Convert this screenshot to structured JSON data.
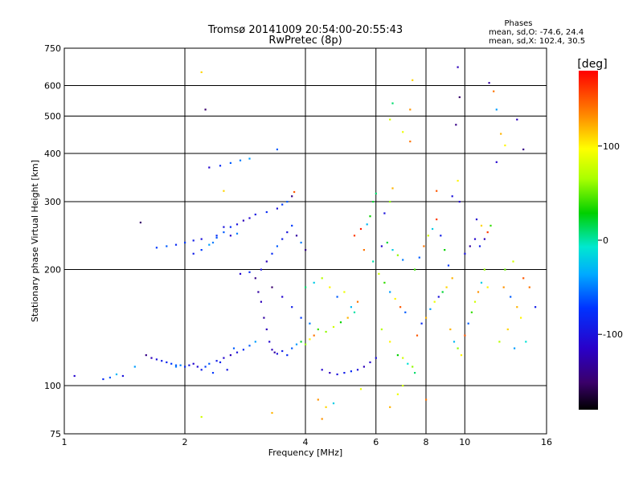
{
  "chart_data": {
    "type": "scatter",
    "title": "Tromsø 20141009 20:54:00-20:55:43",
    "subtitle": "RwPretec (8p)",
    "xlabel": "Frequency [MHz]",
    "ylabel": "Stationary phase Virtual Height [km]",
    "x_scale": "log",
    "y_scale": "log",
    "xlim": [
      1,
      16
    ],
    "ylim": [
      75,
      750
    ],
    "x_ticks": [
      1,
      2,
      4,
      6,
      8,
      10,
      16
    ],
    "y_ticks": [
      75,
      100,
      200,
      300,
      400,
      500,
      600,
      750
    ],
    "x_gridlines": [
      2,
      4,
      6,
      8,
      10
    ],
    "y_gridlines": [
      100,
      200,
      300,
      400,
      500,
      600
    ],
    "grid": true,
    "stats": {
      "heading": "Phases",
      "line1": "mean, sd,O: -74.6, 24.4",
      "line2": "mean, sd,X: 102.4, 30.5"
    },
    "colorbar": {
      "label": "[deg]",
      "ticks": [
        "100",
        "0",
        "-100"
      ],
      "tick_values": [
        100,
        0,
        -100
      ],
      "range": [
        -180,
        180
      ],
      "colormap": "rainbow"
    },
    "series": [
      {
        "values": [
          [
            1.06,
            106,
            -110
          ],
          [
            1.25,
            104,
            -80
          ],
          [
            1.3,
            105,
            -60
          ],
          [
            1.35,
            107,
            -30
          ],
          [
            1.4,
            106,
            -100
          ],
          [
            1.5,
            112,
            -40
          ],
          [
            1.6,
            120,
            -140
          ],
          [
            1.65,
            118,
            -120
          ],
          [
            1.7,
            117,
            -100
          ],
          [
            1.75,
            116,
            -90
          ],
          [
            1.8,
            115,
            -85
          ],
          [
            1.85,
            114,
            -70
          ],
          [
            1.9,
            113,
            -60
          ],
          [
            1.95,
            113,
            -50
          ],
          [
            2.0,
            112,
            -80
          ],
          [
            2.05,
            113,
            -95
          ],
          [
            2.1,
            114,
            -110
          ],
          [
            2.15,
            112,
            -105
          ],
          [
            2.2,
            110,
            -90
          ],
          [
            2.25,
            112,
            -70
          ],
          [
            2.3,
            114,
            -60
          ],
          [
            2.4,
            116,
            -90
          ],
          [
            2.5,
            118,
            -110
          ],
          [
            2.6,
            120,
            -120
          ],
          [
            2.7,
            122,
            -100
          ],
          [
            2.8,
            124,
            -80
          ],
          [
            2.9,
            127,
            -60
          ],
          [
            3.0,
            130,
            -40
          ],
          [
            1.55,
            265,
            -150
          ],
          [
            1.7,
            228,
            -70
          ],
          [
            1.8,
            230,
            -60
          ],
          [
            1.9,
            232,
            -80
          ],
          [
            2.0,
            235,
            -70
          ],
          [
            2.1,
            238,
            -90
          ],
          [
            2.2,
            240,
            -100
          ],
          [
            2.4,
            245,
            -80
          ],
          [
            2.5,
            250,
            -60
          ],
          [
            2.6,
            258,
            -75
          ],
          [
            2.7,
            262,
            -100
          ],
          [
            2.8,
            268,
            -120
          ],
          [
            2.9,
            272,
            -110
          ],
          [
            3.0,
            278,
            -95
          ],
          [
            3.2,
            282,
            -80
          ],
          [
            3.4,
            288,
            -100
          ],
          [
            3.5,
            295,
            -70
          ],
          [
            3.6,
            300,
            -60
          ],
          [
            3.7,
            310,
            -140
          ],
          [
            3.75,
            318,
            150
          ],
          [
            2.3,
            368,
            -110
          ],
          [
            2.45,
            372,
            -80
          ],
          [
            2.6,
            378,
            -60
          ],
          [
            2.75,
            384,
            -50
          ],
          [
            2.9,
            388,
            -40
          ],
          [
            2.25,
            520,
            -150
          ],
          [
            2.2,
            650,
            110
          ],
          [
            3.4,
            410,
            -60
          ],
          [
            2.5,
            320,
            110
          ],
          [
            2.5,
            258,
            -100
          ],
          [
            2.75,
            195,
            -110
          ],
          [
            2.9,
            197,
            -80
          ],
          [
            3.0,
            190,
            -140
          ],
          [
            3.05,
            175,
            -130
          ],
          [
            3.1,
            165,
            -120
          ],
          [
            3.15,
            150,
            -130
          ],
          [
            3.2,
            140,
            -120
          ],
          [
            3.25,
            130,
            -110
          ],
          [
            3.3,
            124,
            -120
          ],
          [
            3.35,
            122,
            -130
          ],
          [
            3.4,
            121,
            -100
          ],
          [
            3.5,
            123,
            -90
          ],
          [
            3.6,
            120,
            -80
          ],
          [
            3.7,
            125,
            -60
          ],
          [
            3.8,
            128,
            -40
          ],
          [
            3.9,
            130,
            20
          ],
          [
            4.0,
            128,
            60
          ],
          [
            4.1,
            132,
            100
          ],
          [
            4.2,
            135,
            140
          ],
          [
            3.1,
            200,
            -100
          ],
          [
            3.2,
            210,
            -120
          ],
          [
            3.3,
            220,
            -80
          ],
          [
            3.4,
            230,
            -60
          ],
          [
            3.5,
            240,
            -90
          ],
          [
            3.6,
            250,
            -100
          ],
          [
            3.7,
            260,
            -70
          ],
          [
            3.8,
            245,
            -130
          ],
          [
            3.9,
            235,
            -50
          ],
          [
            4.0,
            225,
            -140
          ],
          [
            3.3,
            180,
            -150
          ],
          [
            3.5,
            170,
            -110
          ],
          [
            3.7,
            160,
            -90
          ],
          [
            3.9,
            150,
            -70
          ],
          [
            4.1,
            145,
            -50
          ],
          [
            4.3,
            140,
            40
          ],
          [
            4.5,
            138,
            60
          ],
          [
            4.7,
            142,
            80
          ],
          [
            4.9,
            146,
            30
          ],
          [
            5.1,
            150,
            120
          ],
          [
            5.3,
            155,
            0
          ],
          [
            4.0,
            180,
            10
          ],
          [
            4.2,
            185,
            -20
          ],
          [
            4.4,
            190,
            70
          ],
          [
            4.6,
            180,
            100
          ],
          [
            4.8,
            170,
            -60
          ],
          [
            5.0,
            175,
            90
          ],
          [
            5.2,
            160,
            -30
          ],
          [
            5.4,
            165,
            140
          ],
          [
            4.4,
            110,
            -110
          ],
          [
            4.6,
            108,
            -120
          ],
          [
            4.8,
            107,
            -100
          ],
          [
            5.0,
            108,
            -90
          ],
          [
            5.2,
            109,
            -80
          ],
          [
            5.4,
            110,
            -100
          ],
          [
            5.6,
            112,
            -120
          ],
          [
            5.8,
            115,
            -110
          ],
          [
            6.0,
            118,
            -100
          ],
          [
            4.3,
            92,
            130
          ],
          [
            4.5,
            88,
            110
          ],
          [
            4.7,
            90,
            -20
          ],
          [
            5.5,
            98,
            90
          ],
          [
            3.3,
            85,
            120
          ],
          [
            2.2,
            83,
            80
          ],
          [
            4.4,
            82,
            130
          ],
          [
            5.3,
            245,
            160
          ],
          [
            5.5,
            255,
            170
          ],
          [
            5.7,
            262,
            -30
          ],
          [
            5.8,
            275,
            30
          ],
          [
            5.9,
            300,
            20
          ],
          [
            6.0,
            315,
            10
          ],
          [
            5.6,
            225,
            140
          ],
          [
            5.9,
            210,
            0
          ],
          [
            6.1,
            195,
            80
          ],
          [
            6.3,
            185,
            40
          ],
          [
            6.5,
            175,
            -40
          ],
          [
            6.7,
            168,
            100
          ],
          [
            6.9,
            160,
            150
          ],
          [
            7.1,
            155,
            -60
          ],
          [
            6.2,
            230,
            -110
          ],
          [
            6.4,
            235,
            20
          ],
          [
            6.6,
            225,
            -20
          ],
          [
            6.8,
            218,
            60
          ],
          [
            7.0,
            212,
            -50
          ],
          [
            6.3,
            280,
            -100
          ],
          [
            6.5,
            300,
            60
          ],
          [
            6.6,
            325,
            120
          ],
          [
            6.5,
            490,
            80
          ],
          [
            6.6,
            540,
            10
          ],
          [
            7.3,
            520,
            130
          ],
          [
            7.0,
            455,
            90
          ],
          [
            7.4,
            620,
            110
          ],
          [
            7.3,
            430,
            140
          ],
          [
            6.2,
            140,
            70
          ],
          [
            6.5,
            130,
            100
          ],
          [
            6.8,
            120,
            30
          ],
          [
            7.0,
            118,
            80
          ],
          [
            7.2,
            114,
            -10
          ],
          [
            7.4,
            112,
            60
          ],
          [
            7.6,
            135,
            150
          ],
          [
            7.8,
            145,
            -80
          ],
          [
            8.0,
            150,
            120
          ],
          [
            8.2,
            158,
            -40
          ],
          [
            8.4,
            165,
            90
          ],
          [
            8.6,
            170,
            -100
          ],
          [
            8.8,
            175,
            20
          ],
          [
            9.0,
            180,
            110
          ],
          [
            7.5,
            200,
            40
          ],
          [
            7.7,
            215,
            -60
          ],
          [
            7.9,
            230,
            140
          ],
          [
            8.1,
            245,
            80
          ],
          [
            8.3,
            255,
            -20
          ],
          [
            8.5,
            270,
            160
          ],
          [
            8.7,
            245,
            -90
          ],
          [
            8.9,
            225,
            30
          ],
          [
            9.1,
            205,
            -70
          ],
          [
            9.3,
            190,
            120
          ],
          [
            8.5,
            320,
            150
          ],
          [
            9.3,
            310,
            -100
          ],
          [
            9.6,
            340,
            100
          ],
          [
            9.7,
            300,
            -110
          ],
          [
            9.5,
            475,
            -140
          ],
          [
            9.6,
            670,
            -120
          ],
          [
            9.7,
            560,
            -150
          ],
          [
            9.2,
            140,
            120
          ],
          [
            9.4,
            130,
            -30
          ],
          [
            9.6,
            125,
            60
          ],
          [
            9.8,
            120,
            100
          ],
          [
            10.0,
            135,
            150
          ],
          [
            10.2,
            145,
            -60
          ],
          [
            10.4,
            155,
            40
          ],
          [
            10.6,
            165,
            80
          ],
          [
            10.8,
            175,
            130
          ],
          [
            11.0,
            185,
            -20
          ],
          [
            11.2,
            200,
            60
          ],
          [
            11.4,
            180,
            100
          ],
          [
            10.0,
            220,
            -100
          ],
          [
            10.3,
            230,
            -130
          ],
          [
            10.6,
            240,
            -110
          ],
          [
            10.9,
            230,
            -90
          ],
          [
            11.2,
            240,
            -120
          ],
          [
            11.4,
            250,
            160
          ],
          [
            11.0,
            260,
            110
          ],
          [
            10.7,
            270,
            -110
          ],
          [
            11.6,
            260,
            40
          ],
          [
            11.5,
            610,
            -130
          ],
          [
            11.8,
            580,
            140
          ],
          [
            12.0,
            520,
            -40
          ],
          [
            12.3,
            450,
            120
          ],
          [
            12.6,
            420,
            100
          ],
          [
            13.5,
            490,
            -120
          ],
          [
            14.0,
            410,
            -140
          ],
          [
            12.0,
            380,
            -110
          ],
          [
            12.5,
            180,
            130
          ],
          [
            13.0,
            170,
            -60
          ],
          [
            13.5,
            160,
            120
          ],
          [
            14.0,
            190,
            150
          ],
          [
            14.5,
            180,
            140
          ],
          [
            15.0,
            160,
            -90
          ],
          [
            12.2,
            130,
            70
          ],
          [
            12.8,
            140,
            110
          ],
          [
            13.3,
            125,
            -40
          ],
          [
            13.8,
            150,
            100
          ],
          [
            14.2,
            130,
            -10
          ],
          [
            12.6,
            200,
            50
          ],
          [
            13.2,
            210,
            80
          ],
          [
            7.0,
            100,
            80
          ],
          [
            8.0,
            92,
            140
          ],
          [
            6.8,
            95,
            90
          ],
          [
            6.5,
            88,
            120
          ],
          [
            7.5,
            108,
            10
          ],
          [
            1.9,
            112,
            -50
          ],
          [
            2.35,
            108,
            -70
          ],
          [
            2.45,
            115,
            -85
          ],
          [
            2.55,
            110,
            -95
          ],
          [
            2.65,
            125,
            -60
          ],
          [
            2.35,
            235,
            -50
          ],
          [
            2.1,
            220,
            -90
          ],
          [
            2.2,
            225,
            -70
          ],
          [
            2.3,
            232,
            -40
          ],
          [
            2.4,
            242,
            -60
          ],
          [
            2.6,
            245,
            -110
          ],
          [
            2.7,
            248,
            -50
          ]
        ]
      }
    ]
  }
}
